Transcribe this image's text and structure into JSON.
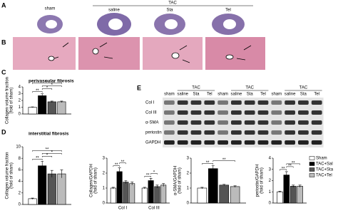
{
  "panel_a": {
    "label": "A",
    "sham": "sham",
    "header": "TAC",
    "groups": [
      "saline",
      "Sta",
      "Tel"
    ]
  },
  "panel_b": {
    "label": "B"
  },
  "panel_e": {
    "label": "E",
    "groups": [
      {
        "header": "TAC",
        "lanes": [
          "sham",
          "saline",
          "Sta",
          "Tel"
        ]
      },
      {
        "header": "TAC",
        "lanes": [
          "sham",
          "saline",
          "Sta",
          "Tel"
        ]
      },
      {
        "header": "TAC",
        "lanes": [
          "sham",
          "saline",
          "Sta",
          "Tel"
        ]
      }
    ],
    "rows": [
      "Col I",
      "Col III",
      "α-SMA",
      "periostin",
      "GAPDH"
    ]
  },
  "chart_data": [
    {
      "type": "bar",
      "label": "C",
      "title": "perivascular fibrosis",
      "ylabel": [
        "Collagen volume fraction",
        "(fold of sham)"
      ],
      "categories": [
        null
      ],
      "ylim": [
        0,
        4
      ],
      "yticks": [
        0,
        1,
        2,
        3,
        4
      ],
      "series": [
        {
          "color": "#ffffff",
          "values": [
            1
          ],
          "errors": [
            0.05
          ]
        },
        {
          "color": "#000000",
          "values": [
            2.7
          ],
          "errors": [
            0.3
          ]
        },
        {
          "color": "#555555",
          "values": [
            1.8
          ],
          "errors": [
            0.1
          ]
        },
        {
          "color": "#bbbbbb",
          "values": [
            1.8
          ],
          "errors": [
            0.1
          ]
        }
      ],
      "significance": [
        {
          "group": 0,
          "bars": [
            0,
            1
          ],
          "label": "**"
        },
        {
          "group": 0,
          "bars": [
            1,
            2
          ],
          "label": "*"
        },
        {
          "group": 0,
          "bars": [
            1,
            3
          ],
          "label": "*"
        },
        {
          "group": 0,
          "bars": [
            0,
            3
          ],
          "label": "**"
        }
      ]
    },
    {
      "type": "bar",
      "label": "D",
      "title": "interstitial fibrosis",
      "ylabel": [
        "Collagen volume fraction",
        "(fold of sham)"
      ],
      "categories": [
        null
      ],
      "ylim": [
        0,
        10
      ],
      "yticks": [
        0,
        2,
        4,
        6,
        8,
        10
      ],
      "series": [
        {
          "color": "#ffffff",
          "values": [
            1
          ],
          "errors": [
            0.1
          ]
        },
        {
          "color": "#000000",
          "values": [
            6.7
          ],
          "errors": [
            0.8
          ]
        },
        {
          "color": "#555555",
          "values": [
            5.3
          ],
          "errors": [
            0.6
          ]
        },
        {
          "color": "#bbbbbb",
          "values": [
            5.3
          ],
          "errors": [
            0.7
          ]
        }
      ],
      "significance": [
        {
          "group": 0,
          "bars": [
            0,
            1
          ],
          "label": "**"
        },
        {
          "group": 0,
          "bars": [
            1,
            2
          ],
          "label": "*"
        },
        {
          "group": 0,
          "bars": [
            1,
            3
          ],
          "label": "*"
        },
        {
          "group": 0,
          "bars": [
            0,
            3
          ],
          "label": "**"
        }
      ]
    },
    {
      "type": "bar",
      "ylabel": [
        "Collagen/GAPDH",
        "(fold of sham)"
      ],
      "categories": [
        "Col I",
        "Col III"
      ],
      "ylim": [
        0,
        3
      ],
      "yticks": [
        0,
        1,
        2,
        3
      ],
      "series": [
        {
          "color": "#ffffff",
          "values": [
            1,
            1
          ],
          "errors": [
            0.05,
            0.05
          ]
        },
        {
          "color": "#000000",
          "values": [
            2.1,
            1.5
          ],
          "errors": [
            0.25,
            0.15
          ]
        },
        {
          "color": "#555555",
          "values": [
            1.4,
            1.1
          ],
          "errors": [
            0.1,
            0.1
          ]
        },
        {
          "color": "#bbbbbb",
          "values": [
            1.3,
            1.2
          ],
          "errors": [
            0.1,
            0.1
          ]
        }
      ],
      "significance": [
        {
          "group": 0,
          "bars": [
            0,
            1
          ],
          "label": "**"
        },
        {
          "group": 0,
          "bars": [
            1,
            2
          ],
          "label": "**"
        },
        {
          "group": 1,
          "bars": [
            0,
            1
          ],
          "label": "**"
        },
        {
          "group": 1,
          "bars": [
            1,
            2
          ],
          "label": "*"
        }
      ]
    },
    {
      "type": "bar",
      "ylabel": [
        "α-SMA/GAPDH",
        "(fold of sham)"
      ],
      "categories": [
        null
      ],
      "ylim": [
        0,
        3
      ],
      "yticks": [
        0,
        1,
        2,
        3
      ],
      "series": [
        {
          "color": "#ffffff",
          "values": [
            1
          ],
          "errors": [
            0.05
          ]
        },
        {
          "color": "#000000",
          "values": [
            2.3
          ],
          "errors": [
            0.2
          ]
        },
        {
          "color": "#555555",
          "values": [
            1.2
          ],
          "errors": [
            0.05
          ]
        },
        {
          "color": "#bbbbbb",
          "values": [
            1.1
          ],
          "errors": [
            0.05
          ]
        }
      ],
      "significance": [
        {
          "group": 0,
          "bars": [
            0,
            1
          ],
          "label": "**"
        },
        {
          "group": 0,
          "bars": [
            1,
            3
          ],
          "label": "**"
        }
      ]
    },
    {
      "type": "bar",
      "ylabel": [
        "periostin/GAPDH",
        "(fold of sham)"
      ],
      "categories": [
        null
      ],
      "ylim": [
        0,
        4
      ],
      "yticks": [
        0,
        1,
        2,
        3,
        4
      ],
      "series": [
        {
          "name": "Sham",
          "color": "#ffffff",
          "values": [
            1
          ],
          "errors": [
            0.05
          ]
        },
        {
          "name": "TAC+Sal",
          "color": "#000000",
          "values": [
            2.5
          ],
          "errors": [
            0.3
          ]
        },
        {
          "name": "TAC+Sta",
          "color": "#555555",
          "values": [
            1.5
          ],
          "errors": [
            0.1
          ]
        },
        {
          "name": "TAC+Tel",
          "color": "#bbbbbb",
          "values": [
            1.5
          ],
          "errors": [
            0.1
          ]
        }
      ],
      "significance": [
        {
          "group": 0,
          "bars": [
            0,
            1
          ],
          "label": "**"
        },
        {
          "group": 0,
          "bars": [
            1,
            2
          ],
          "label": "**"
        },
        {
          "group": 0,
          "bars": [
            1,
            3
          ],
          "label": "**"
        }
      ]
    }
  ]
}
